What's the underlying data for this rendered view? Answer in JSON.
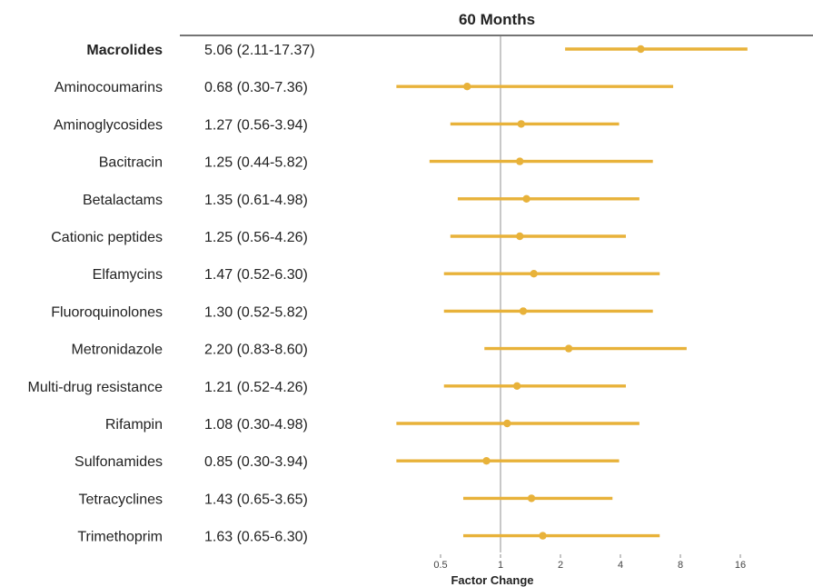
{
  "chart_data": {
    "type": "forest",
    "title": "60 Months",
    "xlabel": "Factor Change",
    "x_scale": "log2",
    "xlim": [
      0.21,
      21
    ],
    "x_ticks": [
      0.5,
      1,
      2,
      4,
      8,
      16
    ],
    "x_tick_labels": [
      "0.5",
      "1",
      "2",
      "4",
      "8",
      "16"
    ],
    "reference_line": 1,
    "colors": {
      "point": "#E8B23A",
      "reference": "#b0b0b0",
      "rule": "#222222"
    },
    "rows": [
      {
        "label": "Macrolides",
        "estimate_text": "5.06 (2.11-17.37)",
        "estimate": 5.06,
        "lower": 2.11,
        "upper": 17.37,
        "bold": true
      },
      {
        "label": "Aminocoumarins",
        "estimate_text": "0.68 (0.30-7.36)",
        "estimate": 0.68,
        "lower": 0.3,
        "upper": 7.36,
        "bold": false
      },
      {
        "label": "Aminoglycosides",
        "estimate_text": "1.27 (0.56-3.94)",
        "estimate": 1.27,
        "lower": 0.56,
        "upper": 3.94,
        "bold": false
      },
      {
        "label": "Bacitracin",
        "estimate_text": "1.25 (0.44-5.82)",
        "estimate": 1.25,
        "lower": 0.44,
        "upper": 5.82,
        "bold": false
      },
      {
        "label": "Betalactams",
        "estimate_text": "1.35 (0.61-4.98)",
        "estimate": 1.35,
        "lower": 0.61,
        "upper": 4.98,
        "bold": false
      },
      {
        "label": "Cationic peptides",
        "estimate_text": "1.25 (0.56-4.26)",
        "estimate": 1.25,
        "lower": 0.56,
        "upper": 4.26,
        "bold": false
      },
      {
        "label": "Elfamycins",
        "estimate_text": "1.47 (0.52-6.30)",
        "estimate": 1.47,
        "lower": 0.52,
        "upper": 6.3,
        "bold": false
      },
      {
        "label": "Fluoroquinolones",
        "estimate_text": "1.30 (0.52-5.82)",
        "estimate": 1.3,
        "lower": 0.52,
        "upper": 5.82,
        "bold": false
      },
      {
        "label": "Metronidazole",
        "estimate_text": "2.20 (0.83-8.60)",
        "estimate": 2.2,
        "lower": 0.83,
        "upper": 8.6,
        "bold": false
      },
      {
        "label": "Multi-drug resistance",
        "estimate_text": "1.21 (0.52-4.26)",
        "estimate": 1.21,
        "lower": 0.52,
        "upper": 4.26,
        "bold": false
      },
      {
        "label": "Rifampin",
        "estimate_text": "1.08 (0.30-4.98)",
        "estimate": 1.08,
        "lower": 0.3,
        "upper": 4.98,
        "bold": false
      },
      {
        "label": "Sulfonamides",
        "estimate_text": "0.85 (0.30-3.94)",
        "estimate": 0.85,
        "lower": 0.3,
        "upper": 3.94,
        "bold": false
      },
      {
        "label": "Tetracyclines",
        "estimate_text": "1.43 (0.65-3.65)",
        "estimate": 1.43,
        "lower": 0.65,
        "upper": 3.65,
        "bold": false
      },
      {
        "label": "Trimethoprim",
        "estimate_text": "1.63 (0.65-6.30)",
        "estimate": 1.63,
        "lower": 0.65,
        "upper": 6.3,
        "bold": false
      }
    ]
  }
}
